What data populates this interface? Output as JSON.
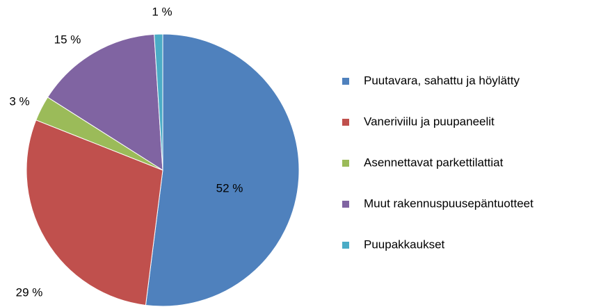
{
  "chart_data": {
    "type": "pie",
    "categories": [
      "Puutavara, sahattu ja höylätty",
      "Vaneriviilu ja puupaneelit",
      "Asennettavat parkettilattiat",
      "Muut rakennuspuusepäntuotteet",
      "Puupakkaukset"
    ],
    "values": [
      52,
      29,
      3,
      15,
      1
    ],
    "value_labels": [
      "52 %",
      "29 %",
      "3 %",
      "15 %",
      "1 %"
    ],
    "colors": [
      "#4f81bd",
      "#c0504d",
      "#9bbb59",
      "#8064a2",
      "#4bacc6"
    ],
    "legend": "right"
  }
}
